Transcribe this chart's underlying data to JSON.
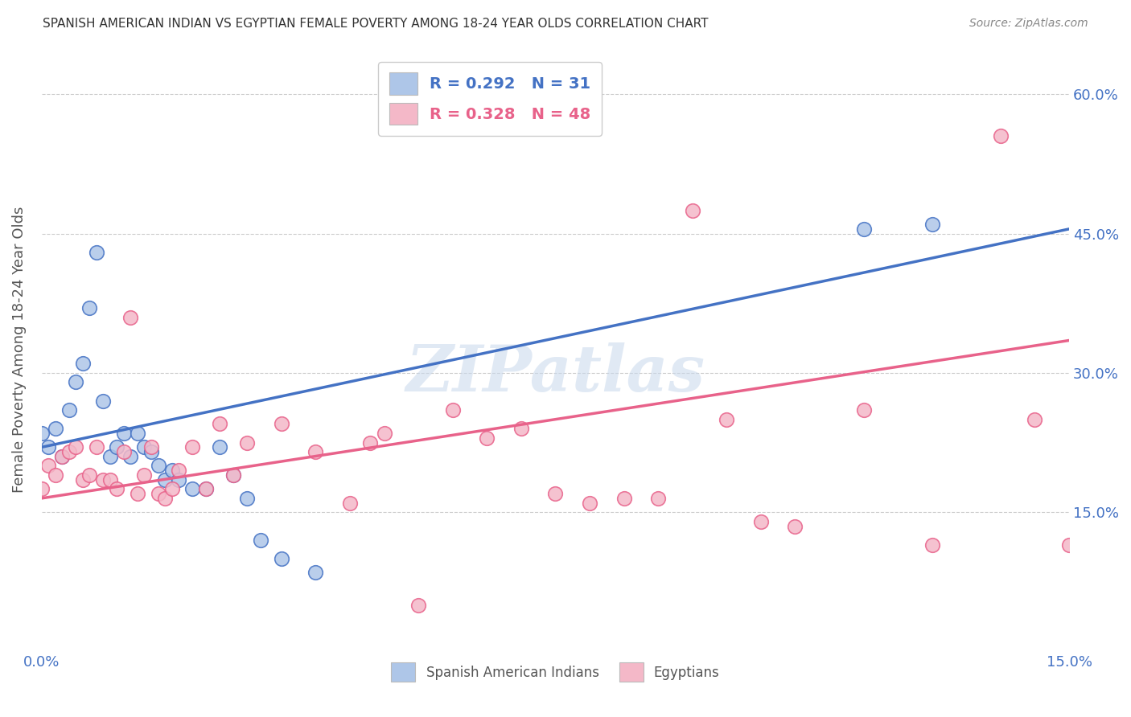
{
  "title": "SPANISH AMERICAN INDIAN VS EGYPTIAN FEMALE POVERTY AMONG 18-24 YEAR OLDS CORRELATION CHART",
  "source": "Source: ZipAtlas.com",
  "ylabel": "Female Poverty Among 18-24 Year Olds",
  "xlim": [
    0.0,
    0.15
  ],
  "ylim": [
    0.0,
    0.65
  ],
  "xticks": [
    0.0,
    0.05,
    0.1,
    0.15
  ],
  "yticks": [
    0.15,
    0.3,
    0.45,
    0.6
  ],
  "xtick_labels": [
    "0.0%",
    "",
    "",
    "15.0%"
  ],
  "ytick_labels_right": [
    "15.0%",
    "30.0%",
    "45.0%",
    "60.0%"
  ],
  "blue_color": "#aec6e8",
  "blue_line_color": "#4472c4",
  "pink_color": "#f4b8c8",
  "pink_line_color": "#e8628a",
  "r_blue": 0.292,
  "n_blue": 31,
  "r_pink": 0.328,
  "n_pink": 48,
  "watermark": "ZIPatlas",
  "blue_scatter_x": [
    0.0,
    0.001,
    0.002,
    0.003,
    0.004,
    0.005,
    0.006,
    0.007,
    0.008,
    0.009,
    0.01,
    0.011,
    0.012,
    0.013,
    0.014,
    0.015,
    0.016,
    0.017,
    0.018,
    0.019,
    0.02,
    0.022,
    0.024,
    0.026,
    0.028,
    0.03,
    0.032,
    0.035,
    0.04,
    0.12,
    0.13
  ],
  "blue_scatter_y": [
    0.235,
    0.22,
    0.24,
    0.21,
    0.26,
    0.29,
    0.31,
    0.37,
    0.43,
    0.27,
    0.21,
    0.22,
    0.235,
    0.21,
    0.235,
    0.22,
    0.215,
    0.2,
    0.185,
    0.195,
    0.185,
    0.175,
    0.175,
    0.22,
    0.19,
    0.165,
    0.12,
    0.1,
    0.085,
    0.455,
    0.46
  ],
  "pink_scatter_x": [
    0.0,
    0.001,
    0.002,
    0.003,
    0.004,
    0.005,
    0.006,
    0.007,
    0.008,
    0.009,
    0.01,
    0.011,
    0.012,
    0.013,
    0.014,
    0.015,
    0.016,
    0.017,
    0.018,
    0.019,
    0.02,
    0.022,
    0.024,
    0.026,
    0.028,
    0.03,
    0.035,
    0.04,
    0.045,
    0.048,
    0.05,
    0.055,
    0.06,
    0.065,
    0.07,
    0.075,
    0.08,
    0.085,
    0.09,
    0.095,
    0.1,
    0.105,
    0.11,
    0.12,
    0.13,
    0.14,
    0.145,
    0.15
  ],
  "pink_scatter_y": [
    0.175,
    0.2,
    0.19,
    0.21,
    0.215,
    0.22,
    0.185,
    0.19,
    0.22,
    0.185,
    0.185,
    0.175,
    0.215,
    0.36,
    0.17,
    0.19,
    0.22,
    0.17,
    0.165,
    0.175,
    0.195,
    0.22,
    0.175,
    0.245,
    0.19,
    0.225,
    0.245,
    0.215,
    0.16,
    0.225,
    0.235,
    0.05,
    0.26,
    0.23,
    0.24,
    0.17,
    0.16,
    0.165,
    0.165,
    0.475,
    0.25,
    0.14,
    0.135,
    0.26,
    0.115,
    0.555,
    0.25,
    0.115
  ],
  "background_color": "#ffffff",
  "grid_color": "#cccccc"
}
